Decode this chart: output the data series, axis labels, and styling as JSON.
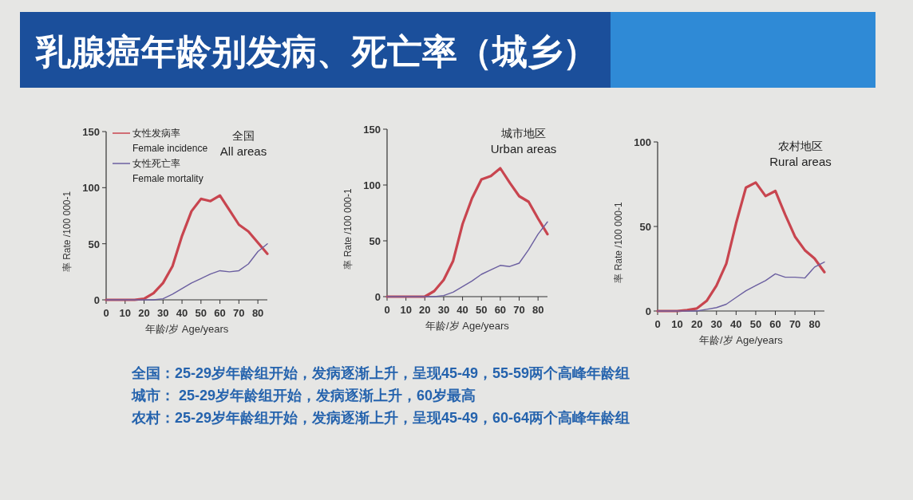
{
  "chart_data": [
    {
      "type": "other",
      "title": "乳腺癌年龄别发病、死亡率（城乡）"
    },
    {
      "type": "line",
      "title": "全国",
      "subtitle": "All areas",
      "xlabel": "年龄/岁 Age/years",
      "ylabel": "率 Rate /100 000-1",
      "x": [
        0,
        5,
        10,
        15,
        20,
        25,
        30,
        35,
        40,
        45,
        50,
        55,
        60,
        65,
        70,
        75,
        80,
        85
      ],
      "xlim": [
        0,
        85
      ],
      "ylim": [
        0,
        150
      ],
      "xticks": [
        0,
        10,
        20,
        30,
        40,
        50,
        60,
        70,
        80
      ],
      "yticks": [
        0,
        50,
        100,
        150
      ],
      "legend": "top left",
      "series": [
        {
          "name": "女性发病率 Female incidence",
          "color": "#c8454f",
          "values": [
            0,
            0,
            0,
            0,
            1,
            6,
            15,
            30,
            57,
            79,
            90,
            88,
            93,
            80,
            67,
            61,
            51,
            41
          ]
        },
        {
          "name": "女性死亡率 Female mortality",
          "color": "#6b5fa0",
          "values": [
            0,
            0,
            0,
            0,
            0,
            0,
            1,
            5,
            10,
            15,
            19,
            23,
            26,
            25,
            26,
            32,
            43,
            50
          ]
        }
      ]
    },
    {
      "type": "line",
      "title": "城市地区",
      "subtitle": "Urban areas",
      "xlabel": "年龄/岁 Age/years",
      "ylabel": "率 Rate /100 000-1",
      "x": [
        0,
        5,
        10,
        15,
        20,
        25,
        30,
        35,
        40,
        45,
        50,
        55,
        60,
        65,
        70,
        75,
        80,
        85
      ],
      "xlim": [
        0,
        85
      ],
      "ylim": [
        0,
        150
      ],
      "xticks": [
        0,
        10,
        20,
        30,
        40,
        50,
        60,
        70,
        80
      ],
      "yticks": [
        0,
        50,
        100,
        150
      ],
      "series": [
        {
          "color": "#c8454f",
          "values": [
            0,
            0,
            0,
            0,
            0,
            5,
            15,
            32,
            65,
            88,
            105,
            108,
            115,
            102,
            90,
            85,
            70,
            56
          ]
        },
        {
          "color": "#6b5fa0",
          "values": [
            0,
            0,
            0,
            0,
            0,
            0,
            1,
            4,
            9,
            14,
            20,
            24,
            28,
            27,
            30,
            42,
            56,
            67
          ]
        }
      ]
    },
    {
      "type": "line",
      "title": "农村地区",
      "subtitle": "Rural areas",
      "xlabel": "年龄/岁 Age/years",
      "ylabel": "率 Rate /100 000-1",
      "x": [
        0,
        5,
        10,
        15,
        20,
        25,
        30,
        35,
        40,
        45,
        50,
        55,
        60,
        65,
        70,
        75,
        80,
        85
      ],
      "xlim": [
        0,
        85
      ],
      "ylim": [
        0,
        100
      ],
      "xticks": [
        0,
        10,
        20,
        30,
        40,
        50,
        60,
        70,
        80
      ],
      "yticks": [
        0,
        50,
        100
      ],
      "series": [
        {
          "color": "#c8454f",
          "values": [
            0,
            0,
            0,
            0.5,
            1.5,
            6,
            15,
            28,
            52,
            73,
            76,
            68,
            71,
            57,
            44,
            36,
            31,
            23
          ]
        },
        {
          "color": "#6b5fa0",
          "values": [
            0,
            0,
            0,
            0,
            0,
            1,
            2,
            4,
            8,
            12,
            15,
            18,
            22,
            20,
            20,
            19.5,
            26,
            29
          ]
        }
      ]
    },
    {
      "type": "other",
      "annotations": [
        "全国：25-29岁年龄组开始，发病逐渐上升，呈现45-49，55-59两个高峰年龄组",
        "城市： 25-29岁年龄组开始，发病逐渐上升，60岁最高",
        "农村：25-29岁年龄组开始，发病逐渐上升，呈现45-49，60-64两个高峰年龄组"
      ]
    }
  ]
}
